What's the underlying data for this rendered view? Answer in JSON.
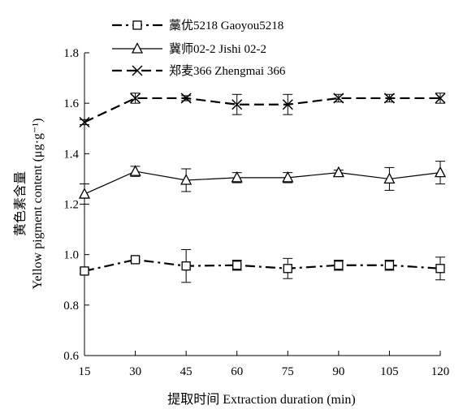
{
  "chart_data": {
    "type": "line",
    "title": "",
    "xlabel": "提取时间 Extraction duration (min)",
    "ylabel_cn": "黄色素含量",
    "ylabel_en": "Yellow pigment content (μg·g⁻¹)",
    "x": [
      15,
      30,
      45,
      60,
      75,
      90,
      105,
      120
    ],
    "x_tick_labels": [
      "15",
      "30",
      "45",
      "60",
      "75",
      "90",
      "105",
      "120"
    ],
    "xlim": [
      15,
      120
    ],
    "ylim": [
      0.6,
      1.8
    ],
    "y_ticks": [
      0.6,
      0.8,
      1.0,
      1.2,
      1.4,
      1.6,
      1.8
    ],
    "y_tick_labels": [
      "0.6",
      "0.8",
      "1.0",
      "1.2",
      "1.4",
      "1.6",
      "1.8"
    ],
    "grid": false,
    "legend_position": "top-center",
    "series": [
      {
        "name": "藁优5218 Gaoyou5218",
        "values": [
          0.935,
          0.98,
          0.955,
          0.958,
          0.945,
          0.958,
          0.958,
          0.945
        ],
        "errors": [
          0.01,
          0.01,
          0.065,
          0.02,
          0.04,
          0.02,
          0.02,
          0.045
        ],
        "marker": "square",
        "line_style": "dash-dot",
        "color": "#000000"
      },
      {
        "name": "冀师02-2 Jishi 02-2",
        "values": [
          1.24,
          1.33,
          1.295,
          1.305,
          1.305,
          1.325,
          1.3,
          1.325
        ],
        "errors": [
          0.04,
          0.02,
          0.045,
          0.02,
          0.02,
          0.01,
          0.045,
          0.045
        ],
        "marker": "triangle",
        "line_style": "solid",
        "color": "#000000"
      },
      {
        "name": "郑麦366 Zhengmai 366",
        "values": [
          1.525,
          1.62,
          1.62,
          1.595,
          1.595,
          1.62,
          1.62,
          1.62
        ],
        "errors": [
          0.01,
          0.02,
          0.01,
          0.04,
          0.04,
          0.015,
          0.015,
          0.02
        ],
        "marker": "x",
        "line_style": "dash",
        "color": "#000000"
      }
    ]
  }
}
